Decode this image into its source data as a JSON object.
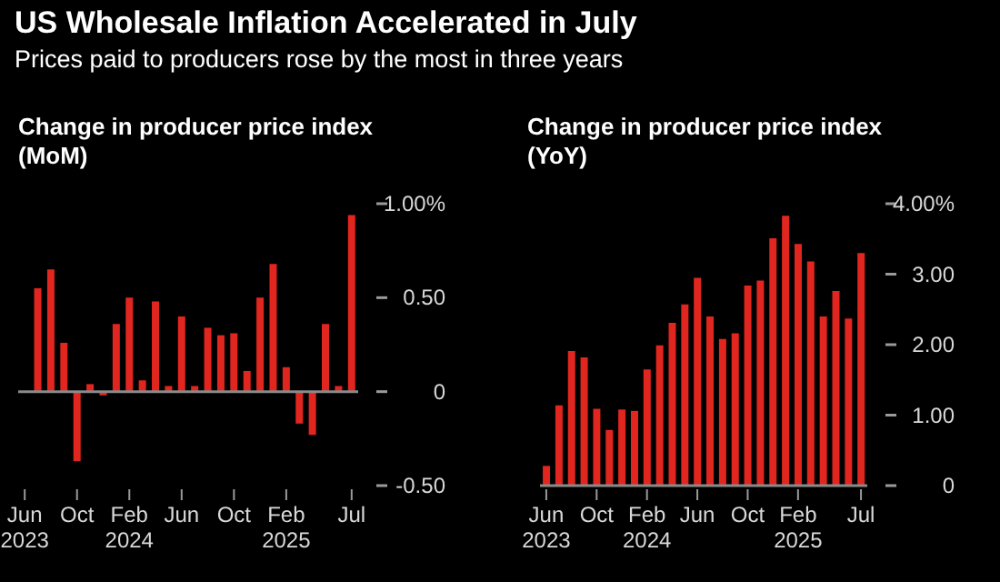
{
  "chart_data": [
    {
      "type": "other",
      "title": "US Wholesale Inflation Accelerated in July",
      "subtitle": "Prices paid to producers rose by the most in three years"
    },
    {
      "type": "bar",
      "title": "Change in producer price index (MoM)",
      "categories": [
        "Jun 2023",
        null,
        null,
        null,
        "Oct",
        null,
        null,
        null,
        "Feb 2024",
        null,
        null,
        null,
        "Jun",
        null,
        null,
        null,
        "Oct",
        null,
        null,
        null,
        "Feb 2025",
        null,
        null,
        null,
        null,
        "Jul"
      ],
      "series": [
        {
          "color": "#e0261f",
          "values": [
            null,
            0.55,
            0.65,
            0.26,
            -0.37,
            0.04,
            -0.02,
            0.36,
            0.5,
            0.06,
            0.48,
            0.03,
            0.4,
            0.03,
            0.34,
            0.3,
            0.31,
            0.11,
            0.5,
            0.68,
            0.13,
            -0.17,
            -0.23,
            0.36,
            0.03,
            0.94
          ]
        }
      ],
      "ylim": [
        -0.5,
        1.0
      ],
      "yticks": [
        {
          "value": 1.0,
          "label": "1.00%"
        },
        {
          "value": 0.5,
          "label": "0.50"
        },
        0,
        {
          "value": -0.5,
          "label": "-0.50"
        }
      ],
      "ref_lines": [
        {
          "axis": "y",
          "value": 0,
          "color": "#8a8a8a"
        }
      ]
    },
    {
      "type": "bar",
      "title": "Change in producer price index (YoY)",
      "categories": [
        "Jun 2023",
        null,
        null,
        null,
        "Oct",
        null,
        null,
        null,
        "Feb 2024",
        null,
        null,
        null,
        "Jun",
        null,
        null,
        null,
        "Oct",
        null,
        null,
        null,
        "Feb 2025",
        null,
        null,
        null,
        null,
        "Jul"
      ],
      "series": [
        {
          "color": "#e0261f",
          "values": [
            0.28,
            1.14,
            1.91,
            1.82,
            1.09,
            0.79,
            1.08,
            1.06,
            1.65,
            1.99,
            2.31,
            2.57,
            2.95,
            2.4,
            2.08,
            2.16,
            2.84,
            2.91,
            3.51,
            3.83,
            3.43,
            3.18,
            2.4,
            2.76,
            2.37,
            3.3
          ]
        }
      ],
      "ylim": [
        0,
        4.0
      ],
      "yticks": [
        {
          "value": 4.0,
          "label": "4.00%"
        },
        {
          "value": 3.0,
          "label": "3.00"
        },
        {
          "value": 2.0,
          "label": "2.00"
        },
        {
          "value": 1.0,
          "label": "1.00"
        },
        0
      ]
    }
  ]
}
